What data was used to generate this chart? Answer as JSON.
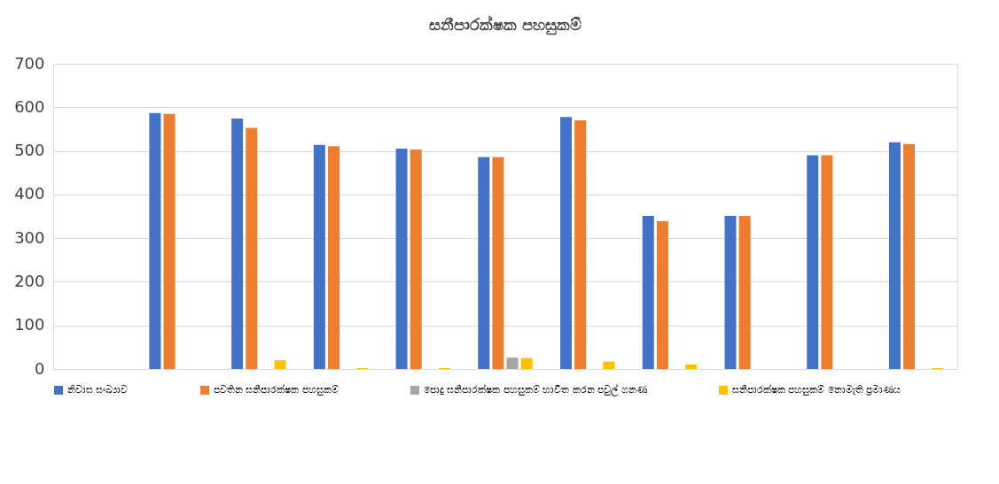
{
  "chart_data": {
    "type": "bar",
    "title": "සනීපාරක්ෂක පහසුකම්",
    "categories": [
      null,
      null,
      null,
      null,
      null,
      null,
      null,
      null,
      null,
      null,
      null
    ],
    "series": [
      {
        "name": "නිවාස සංඛ්‍යාව",
        "color": "#4472c4",
        "values": [
          null,
          587,
          574,
          514,
          505,
          486,
          578,
          351,
          351,
          490,
          520
        ]
      },
      {
        "name": "පවතින සනීපාරක්ෂක පහසුකම්",
        "color": "#ed7d31",
        "values": [
          null,
          585,
          553,
          511,
          503,
          486,
          570,
          339,
          351,
          490,
          516
        ]
      },
      {
        "name": "පොදු සනීපාරක්ෂක පහසුකම් භාවිත කරන පවුල් ගනණ",
        "color": "#a5a5a5",
        "values": [
          null,
          null,
          null,
          null,
          null,
          26,
          null,
          null,
          null,
          null,
          null
        ]
      },
      {
        "name": "සනීපාරක්ෂක පහසුකම් නොමැති ප්‍රමාණය",
        "color": "#ffc000",
        "values": [
          null,
          null,
          20,
          2,
          2,
          25,
          17,
          10,
          null,
          null,
          2
        ]
      }
    ],
    "ylim": [
      0,
      700
    ],
    "yticks": [
      0,
      100,
      200,
      300,
      400,
      500,
      600,
      700
    ],
    "grid": "y",
    "legend": "bottom",
    "tick_labels": "y"
  }
}
